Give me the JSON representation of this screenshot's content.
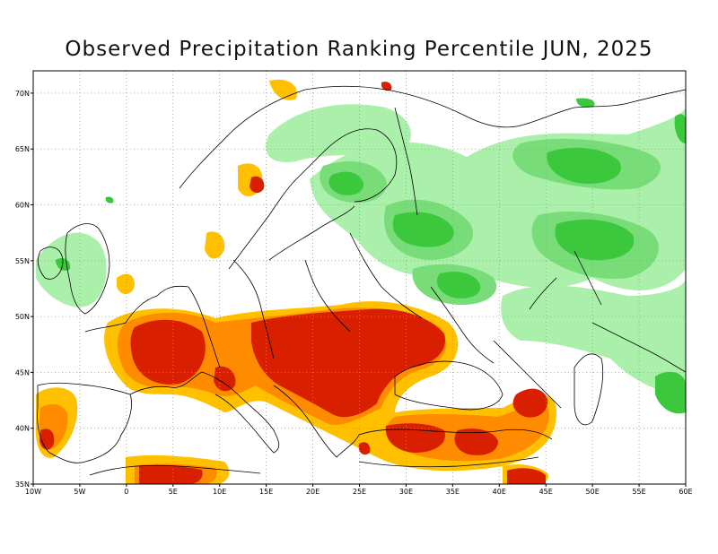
{
  "title": "Observed Precipitation Ranking Percentile JUN, 2025",
  "map": {
    "region": "Europe",
    "lon_range": [
      -10,
      60
    ],
    "lat_range": [
      35,
      72
    ],
    "x_tick_labels": [
      "10W",
      "5W",
      "0",
      "5E",
      "10E",
      "15E",
      "20E",
      "25E",
      "30E",
      "35E",
      "40E",
      "45E",
      "50E",
      "55E",
      "60E"
    ],
    "y_tick_labels": [
      "70N",
      "65N",
      "60N",
      "55N",
      "50N",
      "45N",
      "40N",
      "35N"
    ],
    "y_tick_values": [
      70,
      65,
      60,
      55,
      50,
      45,
      40,
      35
    ],
    "grid": "dotted",
    "colors": {
      "very_dry": "#d82000",
      "dry": "#ff8c00",
      "slightly_dry": "#ffc000",
      "slightly_wet": "#aaf0aa",
      "wet": "#78dc78",
      "very_wet": "#3cc83c"
    }
  }
}
